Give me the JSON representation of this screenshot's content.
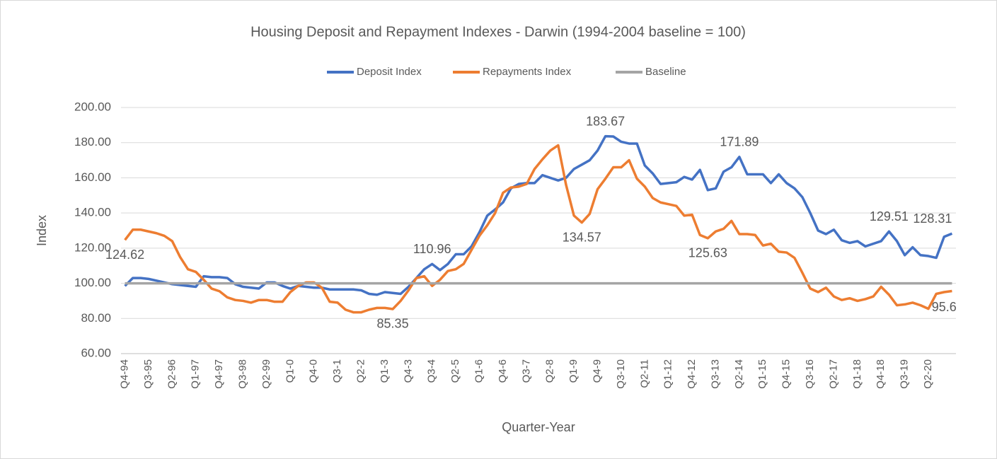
{
  "chart_data": {
    "type": "line",
    "title": "Housing Deposit and Repayment Indexes - Darwin (1994-2004 baseline = 100)",
    "x_label": "Quarter-Year",
    "y_label": "Index",
    "categories": [
      "Q4-94",
      null,
      null,
      "Q3-95",
      null,
      null,
      "Q2-96",
      null,
      null,
      "Q1-97",
      null,
      null,
      "Q4-97",
      null,
      null,
      "Q3-98",
      null,
      null,
      "Q2-99",
      null,
      null,
      "Q1-0",
      null,
      null,
      "Q4-0",
      null,
      null,
      "Q3-1",
      null,
      null,
      "Q2-2",
      null,
      null,
      "Q1-3",
      null,
      null,
      "Q4-3",
      null,
      null,
      "Q3-4",
      null,
      null,
      "Q2-5",
      null,
      null,
      "Q1-6",
      null,
      null,
      "Q4-6",
      null,
      null,
      "Q3-7",
      null,
      null,
      "Q2-8",
      null,
      null,
      "Q1-9",
      null,
      null,
      "Q4-9",
      null,
      null,
      "Q3-10",
      null,
      null,
      "Q2-11",
      null,
      null,
      "Q1-12",
      null,
      null,
      "Q4-12",
      null,
      null,
      "Q3-13",
      null,
      null,
      "Q2-14",
      null,
      null,
      "Q1-15",
      null,
      null,
      "Q4-15",
      null,
      null,
      "Q3-16",
      null,
      null,
      "Q2-17",
      null,
      null,
      "Q1-18",
      null,
      null,
      "Q4-18",
      null,
      null,
      "Q3-19",
      null,
      null,
      "Q2-20",
      null,
      null,
      null
    ],
    "series": [
      {
        "name": "Deposit Index",
        "color": "#4472c4",
        "values": [
          98.5,
          103,
          103,
          102.5,
          101.5,
          100.5,
          99.5,
          99,
          98.5,
          98,
          104,
          103.5,
          103.5,
          103,
          99.5,
          98,
          97.5,
          97,
          100.5,
          100.5,
          98.5,
          97,
          98.5,
          98,
          97.5,
          97.5,
          96.5,
          96.5,
          96.5,
          96.5,
          96,
          94,
          93.5,
          95,
          94.5,
          94,
          98,
          103,
          108,
          110.96,
          107.5,
          111,
          116.5,
          116.5,
          121,
          129,
          138.5,
          142,
          146,
          154,
          156.5,
          157,
          157,
          161.5,
          160,
          158.5,
          160,
          165,
          167.5,
          170,
          175.5,
          183.67,
          183.5,
          180.5,
          179.5,
          179.5,
          167,
          162.5,
          156.5,
          157,
          157.5,
          160.5,
          159,
          164.5,
          153,
          154,
          163.5,
          166,
          171.89,
          162,
          162,
          162,
          157,
          162,
          157,
          154,
          149,
          140,
          130,
          128,
          130.5,
          124.5,
          123,
          124,
          121,
          122.5,
          124,
          129.51,
          124,
          116,
          120.5,
          116,
          115.5,
          114.5,
          126.5,
          128.31
        ],
        "value_labels": [
          null,
          null,
          null,
          null,
          null,
          null,
          null,
          null,
          null,
          null,
          null,
          null,
          null,
          null,
          null,
          null,
          null,
          null,
          null,
          null,
          null,
          null,
          null,
          null,
          null,
          null,
          null,
          null,
          null,
          null,
          null,
          null,
          null,
          null,
          null,
          null,
          null,
          null,
          null,
          "110.96",
          null,
          null,
          null,
          null,
          null,
          null,
          null,
          null,
          null,
          null,
          null,
          null,
          null,
          null,
          null,
          null,
          null,
          null,
          null,
          null,
          null,
          "183.67",
          null,
          null,
          null,
          null,
          null,
          null,
          null,
          null,
          null,
          null,
          null,
          null,
          null,
          null,
          null,
          null,
          "171.89",
          null,
          null,
          null,
          null,
          null,
          null,
          null,
          null,
          null,
          null,
          null,
          null,
          null,
          null,
          null,
          null,
          null,
          null,
          "129.51",
          null,
          null,
          null,
          null,
          null,
          null,
          null,
          "128.31"
        ]
      },
      {
        "name": "Repayments Index",
        "color": "#ed7d31",
        "values": [
          124.62,
          130.5,
          130.5,
          129.5,
          128.5,
          127,
          124,
          115,
          108,
          106.5,
          102,
          97,
          95.5,
          92,
          90.5,
          90,
          89,
          90.5,
          90.5,
          89.5,
          89.5,
          95,
          98.5,
          100.5,
          100.5,
          97.5,
          89.5,
          89,
          85,
          83.5,
          83.5,
          85,
          86,
          86,
          85.35,
          90,
          96,
          103,
          104,
          98.5,
          102,
          107,
          108,
          111,
          119,
          127,
          133,
          140,
          151.5,
          154.5,
          155,
          156.5,
          165,
          170.5,
          175.5,
          178.5,
          156,
          138.5,
          134.57,
          139.5,
          153.5,
          159.5,
          166,
          166,
          170,
          159.5,
          155,
          148.5,
          146,
          145,
          144,
          138.5,
          139,
          127.5,
          125.63,
          129.5,
          131,
          135.5,
          128,
          128,
          127.5,
          121.5,
          122.5,
          118,
          117.5,
          114.5,
          106,
          97,
          95,
          97.5,
          92.5,
          90.5,
          91.5,
          90,
          91,
          92.5,
          98,
          93.5,
          87.5,
          88,
          89,
          87.5,
          85.5,
          94,
          95,
          95.6
        ],
        "value_labels": [
          "124.62",
          null,
          null,
          null,
          null,
          null,
          null,
          null,
          null,
          null,
          null,
          null,
          null,
          null,
          null,
          null,
          null,
          null,
          null,
          null,
          null,
          null,
          null,
          null,
          null,
          null,
          null,
          null,
          null,
          null,
          null,
          null,
          null,
          null,
          "85.35",
          null,
          null,
          null,
          null,
          null,
          null,
          null,
          null,
          null,
          null,
          null,
          null,
          null,
          null,
          null,
          null,
          null,
          null,
          null,
          null,
          null,
          null,
          null,
          "134.57",
          null,
          null,
          null,
          null,
          null,
          null,
          null,
          null,
          null,
          null,
          null,
          null,
          null,
          null,
          null,
          "125.63",
          null,
          null,
          null,
          null,
          null,
          null,
          null,
          null,
          null,
          null,
          null,
          null,
          null,
          null,
          null,
          null,
          null,
          null,
          null,
          null,
          null,
          null,
          null,
          null,
          null,
          null,
          null,
          null,
          null,
          "95.6"
        ]
      },
      {
        "name": "Baseline",
        "color": "#a5a5a5",
        "values": [
          100,
          100,
          100,
          100,
          100,
          100,
          100,
          100,
          100,
          100,
          100,
          100,
          100,
          100,
          100,
          100,
          100,
          100,
          100,
          100,
          100,
          100,
          100,
          100,
          100,
          100,
          100,
          100,
          100,
          100,
          100,
          100,
          100,
          100,
          100,
          100,
          100,
          100,
          100,
          100,
          100,
          100,
          100,
          100,
          100,
          100,
          100,
          100,
          100,
          100,
          100,
          100,
          100,
          100,
          100,
          100,
          100,
          100,
          100,
          100,
          100,
          100,
          100,
          100,
          100,
          100,
          100,
          100,
          100,
          100,
          100,
          100,
          100,
          100,
          100,
          100,
          100,
          100,
          100,
          100,
          100,
          100,
          100,
          100,
          100,
          100,
          100,
          100,
          100,
          100,
          100,
          100,
          100,
          100,
          100,
          100,
          100,
          100,
          100,
          100,
          100,
          100,
          100,
          100,
          100,
          100
        ]
      }
    ],
    "ylim": [
      60,
      200
    ],
    "yticks": [
      {
        "value": 60,
        "label": "60.00"
      },
      {
        "value": 80,
        "label": "80.00"
      },
      {
        "value": 100,
        "label": "100.00"
      },
      {
        "value": 120,
        "label": "120.00"
      },
      {
        "value": 140,
        "label": "140.00"
      },
      {
        "value": 160,
        "label": "160.00"
      },
      {
        "value": 180,
        "label": "180.00"
      },
      {
        "value": 200,
        "label": "200.00"
      }
    ],
    "grid": true,
    "legend": "top"
  }
}
